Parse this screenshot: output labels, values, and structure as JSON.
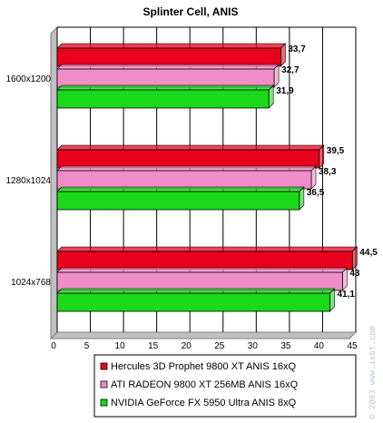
{
  "chart_data": {
    "type": "bar",
    "orientation": "horizontal",
    "title": "Splinter Cell, ANIS",
    "categories": [
      "1600x1200",
      "1280x1024",
      "1024x768"
    ],
    "series": [
      {
        "name": "Hercules 3D Prophet 9800 XT ANIS 16xQ",
        "color": "#e8001c",
        "values": [
          33.7,
          39.5,
          44.5
        ],
        "labels": [
          "33,7",
          "39,5",
          "44,5"
        ]
      },
      {
        "name": "ATI RADEON 9800 XT 256MB ANIS 16xQ",
        "color": "#f08cc8",
        "values": [
          32.7,
          38.3,
          43
        ],
        "labels": [
          "32,7",
          "38,3",
          "43"
        ]
      },
      {
        "name": "NVIDIA GeForce FX 5950 Ultra ANIS 8xQ",
        "color": "#1ad81a",
        "values": [
          31.9,
          36.5,
          41.1
        ],
        "labels": [
          "31,9",
          "36,5",
          "41,1"
        ]
      }
    ],
    "xlim": [
      0,
      45
    ],
    "xticks": [
      "0",
      "5",
      "10",
      "15",
      "20",
      "25",
      "30",
      "35",
      "40",
      "45"
    ],
    "grid": true,
    "legend_position": "bottom"
  },
  "watermark": "© 2003 www.ixbt.com"
}
